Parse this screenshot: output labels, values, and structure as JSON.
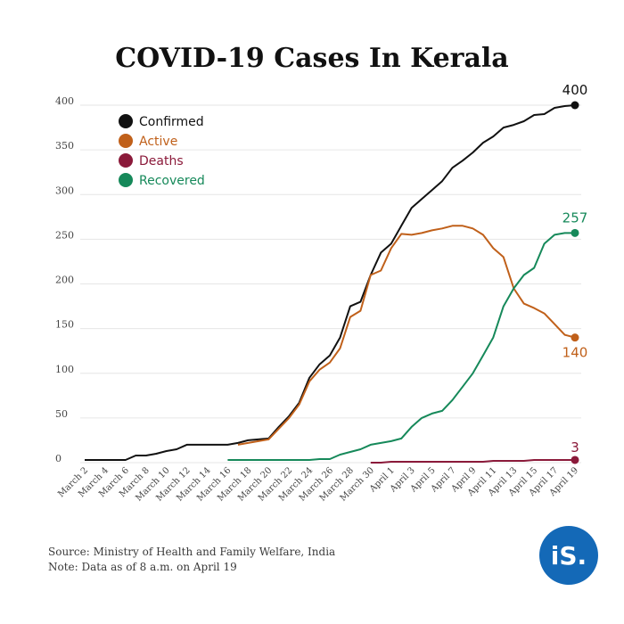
{
  "title": "COVID-19 Cases In Kerala",
  "footer": {
    "source": "Source: Ministry of Health and Family Welfare, India",
    "note": "Note: Data as of 8 a.m. on April 19"
  },
  "logo": "iS.",
  "chart_data": {
    "type": "line",
    "title": "COVID-19 Cases In Kerala",
    "xlabel": "",
    "ylabel": "",
    "ylim": [
      0,
      400
    ],
    "yticks": [
      0,
      50,
      100,
      150,
      200,
      250,
      300,
      350,
      400
    ],
    "grid": "horizontal",
    "legend_position": "top-left",
    "x_tick_labels": [
      "March 2",
      "March 4",
      "March 6",
      "March 8",
      "March 10",
      "March 12",
      "March 14",
      "March 16",
      "March 18",
      "March 20",
      "March 22",
      "March 24",
      "March 26",
      "March 28",
      "March 30",
      "April 1",
      "April 3",
      "April 5",
      "April 7",
      "April 9",
      "April 11",
      "April 13",
      "April 15",
      "April 17",
      "April 19"
    ],
    "x": [
      "March 2",
      "March 3",
      "March 4",
      "March 5",
      "March 6",
      "March 7",
      "March 8",
      "March 9",
      "March 10",
      "March 11",
      "March 12",
      "March 13",
      "March 14",
      "March 15",
      "March 16",
      "March 17",
      "March 18",
      "March 19",
      "March 20",
      "March 21",
      "March 22",
      "March 23",
      "March 24",
      "March 25",
      "March 26",
      "March 27",
      "March 28",
      "March 29",
      "March 30",
      "March 31",
      "April 1",
      "April 2",
      "April 3",
      "April 4",
      "April 5",
      "April 6",
      "April 7",
      "April 8",
      "April 9",
      "April 10",
      "April 11",
      "April 12",
      "April 13",
      "April 14",
      "April 15",
      "April 16",
      "April 17",
      "April 18",
      "April 19"
    ],
    "series": [
      {
        "name": "Confirmed",
        "color": "#111111",
        "values": [
          3,
          3,
          3,
          3,
          3,
          8,
          8,
          10,
          13,
          15,
          20,
          20,
          20,
          20,
          20,
          22,
          25,
          26,
          27,
          40,
          52,
          67,
          95,
          110,
          120,
          140,
          175,
          180,
          210,
          235,
          245,
          265,
          285,
          295,
          305,
          315,
          330,
          338,
          347,
          358,
          365,
          375,
          378,
          382,
          389,
          390,
          397,
          399,
          400
        ],
        "end_label": "400"
      },
      {
        "name": "Active",
        "color": "#c0601a",
        "values": [
          null,
          null,
          null,
          null,
          null,
          null,
          null,
          null,
          null,
          null,
          null,
          null,
          null,
          null,
          null,
          20,
          22,
          24,
          26,
          38,
          50,
          65,
          91,
          104,
          112,
          128,
          163,
          170,
          210,
          215,
          240,
          256,
          255,
          257,
          260,
          262,
          265,
          265,
          262,
          255,
          240,
          230,
          195,
          178,
          173,
          167,
          155,
          143,
          140
        ],
        "end_label": "140"
      },
      {
        "name": "Deaths",
        "color": "#8b1a3a",
        "values": [
          null,
          null,
          null,
          null,
          null,
          null,
          null,
          null,
          null,
          null,
          null,
          null,
          null,
          null,
          null,
          null,
          null,
          null,
          null,
          null,
          null,
          null,
          null,
          null,
          null,
          null,
          null,
          null,
          0,
          0,
          1,
          1,
          1,
          1,
          1,
          1,
          1,
          1,
          1,
          1,
          2,
          2,
          2,
          2,
          3,
          3,
          3,
          3,
          3
        ],
        "end_label": "3"
      },
      {
        "name": "Recovered",
        "color": "#16895a",
        "values": [
          null,
          null,
          null,
          null,
          null,
          null,
          null,
          null,
          null,
          null,
          null,
          null,
          null,
          null,
          3,
          3,
          3,
          3,
          3,
          3,
          3,
          3,
          3,
          4,
          4,
          9,
          12,
          15,
          20,
          22,
          24,
          27,
          40,
          50,
          55,
          58,
          70,
          85,
          100,
          120,
          140,
          175,
          195,
          210,
          218,
          245,
          255,
          257,
          257
        ],
        "end_label": "257"
      }
    ]
  }
}
